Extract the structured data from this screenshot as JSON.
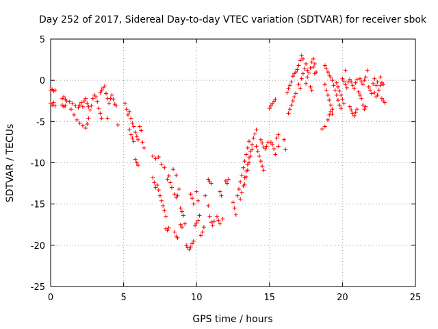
{
  "chart_data": {
    "type": "scatter",
    "title": "Day 252 of 2017, Sidereal Day-to-day VTEC variation (SDTVAR) for receiver sbok",
    "xlabel": "GPS time / hours",
    "ylabel": "SDTVAR / TECUs",
    "xlim": [
      0,
      25
    ],
    "ylim": [
      -25,
      5
    ],
    "xticks": [
      0,
      5,
      10,
      15,
      20,
      25
    ],
    "yticks": [
      5,
      0,
      -5,
      -10,
      -15,
      -20,
      -25
    ],
    "grid": true,
    "marker": "+",
    "color": "#ff0000",
    "series": [
      {
        "name": "SDTVAR",
        "points": [
          [
            0.0,
            -1.2
          ],
          [
            0.1,
            -1.1
          ],
          [
            0.2,
            -1.3
          ],
          [
            0.3,
            -1.2
          ],
          [
            0.0,
            -2.8
          ],
          [
            0.1,
            -3.0
          ],
          [
            0.2,
            -2.7
          ],
          [
            0.3,
            -3.1
          ],
          [
            0.8,
            -2.2
          ],
          [
            0.9,
            -2.0
          ],
          [
            1.0,
            -2.3
          ],
          [
            0.8,
            -3.0
          ],
          [
            0.9,
            -3.2
          ],
          [
            1.0,
            -3.1
          ],
          [
            1.1,
            -2.5
          ],
          [
            1.3,
            -2.6
          ],
          [
            1.5,
            -2.8
          ],
          [
            1.7,
            -3.1
          ],
          [
            1.9,
            -3.3
          ],
          [
            2.0,
            -3.0
          ],
          [
            2.1,
            -2.7
          ],
          [
            2.2,
            -3.2
          ],
          [
            1.4,
            -3.5
          ],
          [
            1.6,
            -4.2
          ],
          [
            1.8,
            -4.8
          ],
          [
            2.0,
            -5.2
          ],
          [
            2.2,
            -5.5
          ],
          [
            2.4,
            -5.8
          ],
          [
            2.5,
            -5.3
          ],
          [
            2.3,
            -2.5
          ],
          [
            2.4,
            -2.2
          ],
          [
            2.5,
            -2.8
          ],
          [
            2.6,
            -3.2
          ],
          [
            2.7,
            -3.6
          ],
          [
            2.8,
            -3.1
          ],
          [
            2.6,
            -4.6
          ],
          [
            2.9,
            -2.2
          ],
          [
            3.0,
            -1.8
          ],
          [
            3.1,
            -2.0
          ],
          [
            3.2,
            -2.6
          ],
          [
            3.3,
            -3.4
          ],
          [
            3.4,
            -4.0
          ],
          [
            3.5,
            -4.6
          ],
          [
            3.4,
            -1.5
          ],
          [
            3.5,
            -1.2
          ],
          [
            3.6,
            -0.9
          ],
          [
            3.7,
            -0.7
          ],
          [
            3.8,
            -1.6
          ],
          [
            3.9,
            -2.2
          ],
          [
            4.0,
            -2.8
          ],
          [
            4.1,
            -2.2
          ],
          [
            4.2,
            -1.8
          ],
          [
            4.3,
            -2.3
          ],
          [
            4.4,
            -2.9
          ],
          [
            4.5,
            -3.1
          ],
          [
            3.9,
            -4.6
          ],
          [
            4.6,
            -5.4
          ],
          [
            5.1,
            -2.8
          ],
          [
            5.2,
            -3.5
          ],
          [
            5.3,
            -4.2
          ],
          [
            5.4,
            -3.8
          ],
          [
            5.5,
            -4.6
          ],
          [
            5.6,
            -5.2
          ],
          [
            5.7,
            -5.6
          ],
          [
            5.4,
            -6.0
          ],
          [
            5.5,
            -6.6
          ],
          [
            5.6,
            -7.0
          ],
          [
            5.7,
            -7.4
          ],
          [
            5.8,
            -6.3
          ],
          [
            5.9,
            -6.8
          ],
          [
            6.0,
            -7.2
          ],
          [
            6.1,
            -5.6
          ],
          [
            6.2,
            -6.1
          ],
          [
            6.3,
            -7.5
          ],
          [
            6.4,
            -8.2
          ],
          [
            5.8,
            -9.6
          ],
          [
            5.9,
            -10.0
          ],
          [
            6.0,
            -10.3
          ],
          [
            7.0,
            -9.2
          ],
          [
            7.2,
            -9.5
          ],
          [
            7.4,
            -9.3
          ],
          [
            7.0,
            -11.8
          ],
          [
            7.1,
            -12.4
          ],
          [
            7.2,
            -13.0
          ],
          [
            7.3,
            -12.7
          ],
          [
            7.4,
            -13.3
          ],
          [
            7.5,
            -14.0
          ],
          [
            7.6,
            -14.6
          ],
          [
            7.7,
            -15.2
          ],
          [
            7.8,
            -15.8
          ],
          [
            7.9,
            -16.5
          ],
          [
            7.6,
            -10.2
          ],
          [
            7.8,
            -10.6
          ],
          [
            8.0,
            -12.0
          ],
          [
            8.1,
            -11.6
          ],
          [
            8.2,
            -12.4
          ],
          [
            8.3,
            -13.0
          ],
          [
            7.9,
            -18.0
          ],
          [
            8.0,
            -18.2
          ],
          [
            8.1,
            -17.9
          ],
          [
            8.4,
            -10.8
          ],
          [
            8.6,
            -11.5
          ],
          [
            8.8,
            -13.2
          ],
          [
            8.5,
            -13.8
          ],
          [
            8.6,
            -14.2
          ],
          [
            8.7,
            -14.0
          ],
          [
            8.9,
            -15.5
          ],
          [
            9.0,
            -15.9
          ],
          [
            9.1,
            -16.4
          ],
          [
            8.5,
            -18.4
          ],
          [
            8.6,
            -18.9
          ],
          [
            8.7,
            -19.1
          ],
          [
            8.9,
            -17.5
          ],
          [
            9.0,
            -17.8
          ],
          [
            9.2,
            -17.4
          ],
          [
            9.3,
            -20.0
          ],
          [
            9.4,
            -20.3
          ],
          [
            9.5,
            -20.5
          ],
          [
            9.6,
            -20.2
          ],
          [
            9.7,
            -19.8
          ],
          [
            9.8,
            -19.5
          ],
          [
            9.6,
            -13.8
          ],
          [
            9.7,
            -14.3
          ],
          [
            9.8,
            -15.0
          ],
          [
            9.9,
            -17.6
          ],
          [
            10.0,
            -17.3
          ],
          [
            10.1,
            -17.0
          ],
          [
            10.0,
            -13.5
          ],
          [
            10.1,
            -14.6
          ],
          [
            10.2,
            -16.4
          ],
          [
            10.3,
            -18.8
          ],
          [
            10.4,
            -18.4
          ],
          [
            10.5,
            -17.8
          ],
          [
            10.6,
            -14.0
          ],
          [
            10.8,
            -15.2
          ],
          [
            10.9,
            -16.5
          ],
          [
            11.0,
            -17.2
          ],
          [
            11.1,
            -17.6
          ],
          [
            11.2,
            -17.1
          ],
          [
            10.8,
            -12.0
          ],
          [
            10.9,
            -12.3
          ],
          [
            11.0,
            -12.5
          ],
          [
            11.4,
            -16.5
          ],
          [
            11.5,
            -17.0
          ],
          [
            11.6,
            -17.4
          ],
          [
            11.6,
            -13.5
          ],
          [
            11.7,
            -14.0
          ],
          [
            11.8,
            -16.8
          ],
          [
            12.0,
            -12.2
          ],
          [
            12.1,
            -12.5
          ],
          [
            12.2,
            -12.0
          ],
          [
            12.5,
            -14.8
          ],
          [
            12.6,
            -15.5
          ],
          [
            12.7,
            -16.3
          ],
          [
            12.8,
            -14.0
          ],
          [
            12.9,
            -13.2
          ],
          [
            13.0,
            -12.3
          ],
          [
            13.1,
            -11.5
          ],
          [
            13.2,
            -10.6
          ],
          [
            13.3,
            -9.8
          ],
          [
            13.4,
            -9.0
          ],
          [
            13.5,
            -8.2
          ],
          [
            13.6,
            -7.4
          ],
          [
            13.0,
            -14.4
          ],
          [
            13.1,
            -13.6
          ],
          [
            13.2,
            -12.8
          ],
          [
            13.3,
            -11.8
          ],
          [
            13.4,
            -11.0
          ],
          [
            13.5,
            -10.2
          ],
          [
            13.6,
            -9.4
          ],
          [
            13.7,
            -8.6
          ],
          [
            13.8,
            -7.8
          ],
          [
            13.9,
            -7.0
          ],
          [
            14.0,
            -6.5
          ],
          [
            14.1,
            -6.0
          ],
          [
            13.3,
            -12.6
          ],
          [
            13.4,
            -11.7
          ],
          [
            13.5,
            -10.9
          ],
          [
            13.6,
            -10.0
          ],
          [
            13.7,
            -9.2
          ],
          [
            13.8,
            -8.4
          ],
          [
            14.1,
            -8.0
          ],
          [
            14.2,
            -8.6
          ],
          [
            14.3,
            -9.2
          ],
          [
            14.4,
            -9.8
          ],
          [
            14.5,
            -10.4
          ],
          [
            14.6,
            -10.9
          ],
          [
            14.4,
            -7.2
          ],
          [
            14.5,
            -7.6
          ],
          [
            14.6,
            -8.1
          ],
          [
            14.7,
            -8.3
          ],
          [
            14.8,
            -8.0
          ],
          [
            14.9,
            -7.5
          ],
          [
            15.0,
            -3.4
          ],
          [
            15.1,
            -3.1
          ],
          [
            15.2,
            -2.8
          ],
          [
            15.3,
            -2.6
          ],
          [
            15.4,
            -2.3
          ],
          [
            15.1,
            -7.5
          ],
          [
            15.2,
            -7.8
          ],
          [
            15.3,
            -8.3
          ],
          [
            15.4,
            -9.0
          ],
          [
            15.5,
            -7.0
          ],
          [
            15.6,
            -6.6
          ],
          [
            15.6,
            -8.0
          ],
          [
            16.0,
            -7.2
          ],
          [
            16.1,
            -8.4
          ],
          [
            16.2,
            -1.5
          ],
          [
            16.3,
            -1.0
          ],
          [
            16.4,
            -0.6
          ],
          [
            16.5,
            -0.2
          ],
          [
            16.3,
            -4.0
          ],
          [
            16.4,
            -3.5
          ],
          [
            16.5,
            -3.0
          ],
          [
            16.6,
            -2.5
          ],
          [
            16.7,
            -2.0
          ],
          [
            16.8,
            -1.6
          ],
          [
            16.6,
            0.5
          ],
          [
            16.7,
            0.8
          ],
          [
            16.8,
            1.0
          ],
          [
            16.9,
            1.3
          ],
          [
            17.0,
            1.8
          ],
          [
            17.1,
            2.4
          ],
          [
            17.2,
            3.0
          ],
          [
            17.0,
            -0.5
          ],
          [
            17.1,
            -1.0
          ],
          [
            17.2,
            0.2
          ],
          [
            17.3,
            0.8
          ],
          [
            17.4,
            1.4
          ],
          [
            17.5,
            2.0
          ],
          [
            17.6,
            1.2
          ],
          [
            17.6,
            0.4
          ],
          [
            17.7,
            0.9
          ],
          [
            17.8,
            1.5
          ],
          [
            17.9,
            2.2
          ],
          [
            18.0,
            1.6
          ],
          [
            18.1,
            0.8
          ],
          [
            18.2,
            1.0
          ],
          [
            17.8,
            -0.8
          ],
          [
            17.9,
            -1.2
          ],
          [
            17.5,
            -0.4
          ],
          [
            18.0,
            2.6
          ],
          [
            18.1,
            2.0
          ],
          [
            17.3,
            2.6
          ],
          [
            18.6,
            -5.9
          ],
          [
            18.8,
            -5.6
          ],
          [
            19.0,
            -4.8
          ],
          [
            19.1,
            -4.2
          ],
          [
            19.2,
            -3.8
          ],
          [
            19.3,
            -4.1
          ],
          [
            18.8,
            -0.5
          ],
          [
            18.9,
            -1.2
          ],
          [
            19.0,
            -1.8
          ],
          [
            19.1,
            -2.4
          ],
          [
            19.2,
            -3.0
          ],
          [
            19.3,
            -3.5
          ],
          [
            18.8,
            1.8
          ],
          [
            18.9,
            1.4
          ],
          [
            19.0,
            1.0
          ],
          [
            19.1,
            0.6
          ],
          [
            19.2,
            0.4
          ],
          [
            19.3,
            0.0
          ],
          [
            19.4,
            -0.6
          ],
          [
            19.5,
            -1.2
          ],
          [
            19.6,
            -1.8
          ],
          [
            19.7,
            -2.4
          ],
          [
            19.8,
            -3.0
          ],
          [
            19.9,
            -3.4
          ],
          [
            19.6,
            -0.3
          ],
          [
            19.7,
            -0.8
          ],
          [
            19.8,
            -1.3
          ],
          [
            19.9,
            -1.8
          ],
          [
            20.0,
            -2.3
          ],
          [
            20.1,
            -2.8
          ],
          [
            20.0,
            0.2
          ],
          [
            20.1,
            -0.1
          ],
          [
            20.2,
            -0.5
          ],
          [
            20.3,
            -0.9
          ],
          [
            20.4,
            -0.2
          ],
          [
            20.5,
            0.1
          ],
          [
            20.5,
            -3.2
          ],
          [
            20.6,
            -3.6
          ],
          [
            20.7,
            -4.0
          ],
          [
            20.8,
            -4.3
          ],
          [
            20.9,
            -3.9
          ],
          [
            21.0,
            -3.5
          ],
          [
            20.2,
            1.2
          ],
          [
            20.6,
            -0.2
          ],
          [
            20.7,
            -0.6
          ],
          [
            20.8,
            -1.0
          ],
          [
            20.9,
            -0.3
          ],
          [
            21.0,
            0.1
          ],
          [
            21.1,
            -1.4
          ],
          [
            21.2,
            -1.8
          ],
          [
            21.3,
            -2.2
          ],
          [
            21.4,
            -3.0
          ],
          [
            21.5,
            -3.5
          ],
          [
            21.6,
            -3.2
          ],
          [
            21.2,
            0.2
          ],
          [
            21.3,
            -0.2
          ],
          [
            21.4,
            -0.5
          ],
          [
            21.5,
            0.0
          ],
          [
            21.6,
            0.4
          ],
          [
            21.7,
            1.2
          ],
          [
            21.8,
            -0.8
          ],
          [
            21.9,
            -1.2
          ],
          [
            22.0,
            -1.6
          ],
          [
            22.1,
            -0.4
          ],
          [
            22.2,
            0.2
          ],
          [
            22.3,
            -0.6
          ],
          [
            22.2,
            -1.5
          ],
          [
            22.3,
            -2.0
          ],
          [
            22.4,
            -1.8
          ],
          [
            22.5,
            -1.2
          ],
          [
            22.6,
            -0.6
          ],
          [
            22.7,
            -0.3
          ],
          [
            22.8,
            -0.5
          ],
          [
            22.7,
            -2.2
          ],
          [
            22.8,
            -2.5
          ],
          [
            22.9,
            -2.7
          ],
          [
            22.6,
            0.4
          ],
          [
            22.4,
            -0.2
          ]
        ]
      }
    ]
  }
}
